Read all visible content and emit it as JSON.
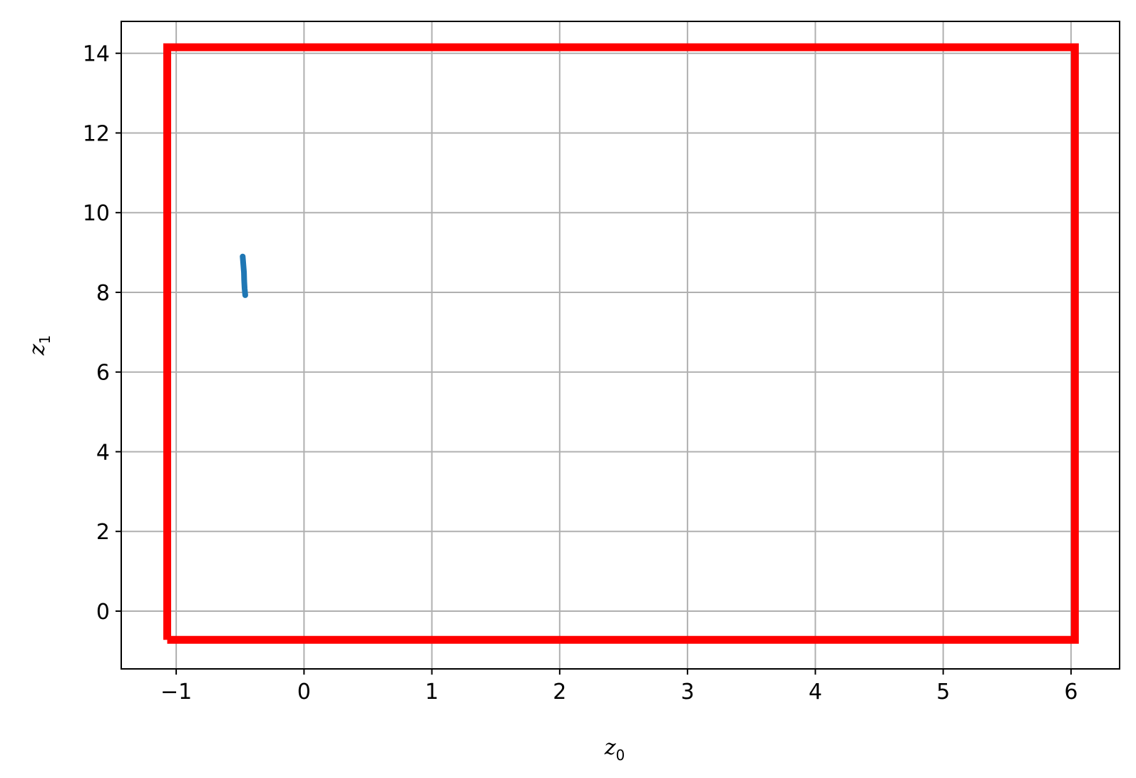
{
  "chart_data": {
    "type": "line",
    "title": "",
    "xlabel": {
      "base": "z",
      "sub": "0"
    },
    "ylabel": {
      "base": "z",
      "sub": "1"
    },
    "xlim": [
      -1.43,
      6.38
    ],
    "ylim": [
      -1.45,
      14.8
    ],
    "xticks": [
      -1,
      0,
      1,
      2,
      3,
      4,
      5,
      6
    ],
    "xtick_labels": [
      "−1",
      "0",
      "1",
      "2",
      "3",
      "4",
      "5",
      "6"
    ],
    "yticks": [
      0,
      2,
      4,
      6,
      8,
      10,
      12,
      14
    ],
    "ytick_labels": [
      "0",
      "2",
      "4",
      "6",
      "8",
      "10",
      "12",
      "14"
    ],
    "grid": true,
    "series": [
      {
        "color": "#ff0000",
        "points": [
          [
            -1.07,
            -0.72
          ],
          [
            -1.07,
            14.15
          ],
          [
            6.03,
            14.15
          ],
          [
            6.03,
            -0.72
          ],
          [
            -1.07,
            -0.72
          ]
        ]
      },
      {
        "color": "#1f77b4",
        "points": [
          [
            -0.48,
            8.9
          ],
          [
            -0.475,
            8.7
          ],
          [
            -0.47,
            8.5
          ],
          [
            -0.468,
            8.3
          ],
          [
            -0.465,
            8.1
          ],
          [
            -0.46,
            7.93
          ]
        ]
      }
    ]
  }
}
